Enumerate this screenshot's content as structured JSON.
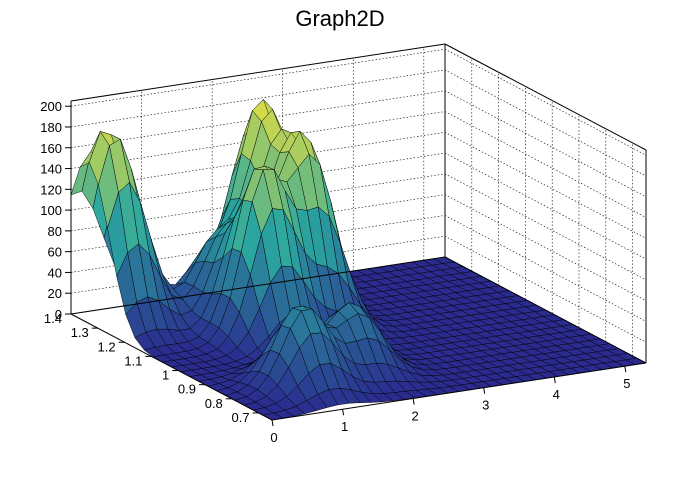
{
  "chart_data": {
    "type": "surface",
    "title": "Graph2D",
    "x_ticks": [
      "0",
      "1",
      "2",
      "3",
      "4",
      "5"
    ],
    "y_ticks": [
      "0.7",
      "0.8",
      "0.9",
      "1",
      "1.1",
      "1.2",
      "1.3",
      "1.4"
    ],
    "z_ticks": [
      "0",
      "20",
      "40",
      "60",
      "80",
      "100",
      "120",
      "140",
      "160",
      "180",
      "200"
    ],
    "xlim": [
      0,
      5.3
    ],
    "ylim": [
      0.65,
      1.4
    ],
    "zlim": [
      0,
      205
    ],
    "grid": true,
    "colormap": "viridis-like (blue → teal → green → yellow)",
    "surface_peaks": [
      {
        "x": 0.0,
        "y": 1.38,
        "z": 90
      },
      {
        "x": 0.3,
        "y": 1.3,
        "z": 155
      },
      {
        "x": 1.5,
        "y": 1.25,
        "z": 70
      },
      {
        "x": 1.6,
        "y": 1.1,
        "z": 160
      },
      {
        "x": 2.3,
        "y": 1.3,
        "z": 185
      },
      {
        "x": 2.4,
        "y": 1.15,
        "z": 165
      },
      {
        "x": 1.0,
        "y": 0.8,
        "z": 80
      },
      {
        "x": 1.9,
        "y": 0.85,
        "z": 65
      }
    ]
  },
  "colors": {
    "low": "#2a2a8f",
    "mid": "#2aa7a0",
    "high": "#f5e43a"
  }
}
